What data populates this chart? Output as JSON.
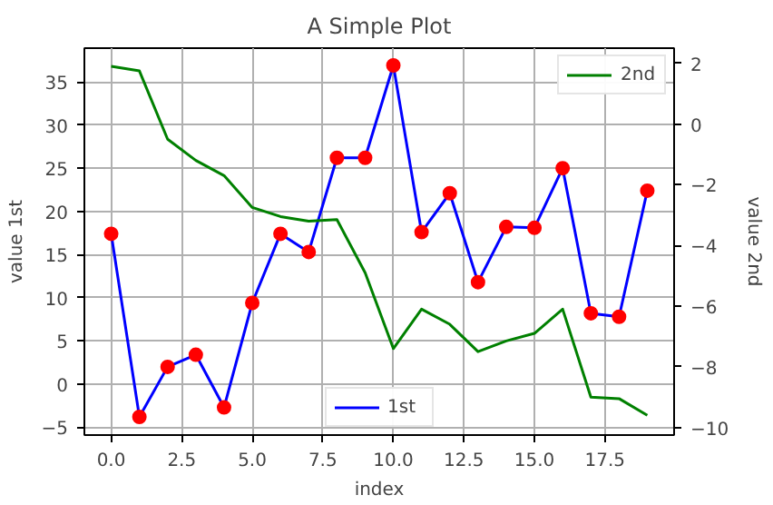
{
  "chart_data": {
    "type": "line",
    "title": "A Simple Plot",
    "xlabel": "index",
    "ylabel": "value 1st",
    "y2label": "value 2nd",
    "x": [
      0,
      1,
      2,
      3,
      4,
      5,
      6,
      7,
      8,
      9,
      10,
      11,
      12,
      13,
      14,
      15,
      16,
      17,
      18,
      19
    ],
    "series": [
      {
        "name": "1st",
        "color": "#0000ff",
        "marker": "circle",
        "colors": [
          "#ff0000",
          "#ff0000",
          "#ff0000",
          "#ff0000",
          "#ff0000",
          "#ff0000",
          "#ff0000",
          "#ff0000",
          "#ff0000",
          "#ff0000",
          "#ff0000",
          "#ff0000",
          "#ff0000",
          "#ff0000",
          "#ff0000",
          "#ff0000",
          "#ff0000",
          "#ff0000",
          "#ff0000",
          "#ff0000"
        ],
        "values": [
          17.4,
          -3.8,
          2.0,
          3.4,
          -2.7,
          9.4,
          17.4,
          15.3,
          26.2,
          26.2,
          36.9,
          17.6,
          22.1,
          11.8,
          18.2,
          18.1,
          25.0,
          8.2,
          7.8,
          22.4
        ]
      },
      {
        "name": "2nd",
        "color": "#008000",
        "axis": "y2",
        "values": [
          1.9,
          1.75,
          -0.5,
          -1.2,
          -1.7,
          -2.75,
          -3.05,
          -3.2,
          -3.15,
          -4.9,
          -7.4,
          -6.1,
          -6.6,
          -7.5,
          -7.15,
          -6.9,
          -6.1,
          -9.0,
          -9.05,
          -9.6
        ]
      }
    ],
    "xlim": [
      -0.95,
      19.95
    ],
    "xticks": [
      {
        "value": 0,
        "label": "0.0"
      },
      {
        "value": 2.5,
        "label": "2.5"
      },
      {
        "value": 5,
        "label": "5.0"
      },
      {
        "value": 7.5,
        "label": "7.5"
      },
      {
        "value": 10,
        "label": "10.0"
      },
      {
        "value": 12.5,
        "label": "12.5"
      },
      {
        "value": 15,
        "label": "15.0"
      },
      {
        "value": 17.5,
        "label": "17.5"
      }
    ],
    "ylim": [
      -5.9,
      38.9
    ],
    "yticks": [
      -5,
      0,
      5,
      10,
      15,
      20,
      25,
      30,
      35
    ],
    "y2lim": [
      -10.25,
      2.5
    ],
    "y2ticks": [
      -10,
      -8,
      -6,
      -4,
      -2,
      0,
      2
    ],
    "grid": true,
    "legend": [
      "bottom",
      "top right"
    ]
  }
}
